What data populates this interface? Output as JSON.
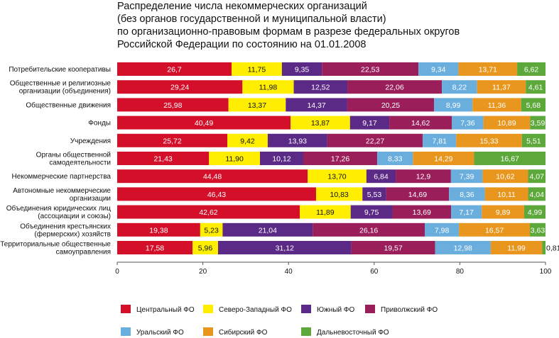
{
  "chart_data": {
    "type": "bar",
    "orientation": "horizontal",
    "stacked": true,
    "title": [
      "Распределение числа некоммерческих организаций",
      "(без органов государственной и муниципальной власти)",
      "по организационно-правовым формам  в разрезе федеральных округов",
      "Российской Федерации по состоянию на 01.01.2008"
    ],
    "categories": [
      [
        "Потребительские кооперативы"
      ],
      [
        "Общественные и религиозные",
        "организации (объединения)"
      ],
      [
        "Общественные движения"
      ],
      [
        "Фонды"
      ],
      [
        "Учреждения"
      ],
      [
        "Органы общественной",
        "самодеятельности"
      ],
      [
        "Некоммерческие партнерства"
      ],
      [
        "Автономные некоммерческие",
        "организации"
      ],
      [
        "Объединения юридических лиц",
        "(ассоциации и союзы)"
      ],
      [
        "Объединения крестьянских",
        "(фермерских) хозяйств"
      ],
      [
        "Территориальные общественные",
        "самоуправления"
      ]
    ],
    "series": [
      {
        "name": "Центральный ФО",
        "color": "#d40f2a",
        "label_color": "#ffffff",
        "values": [
          26.7,
          29.24,
          25.98,
          40.49,
          25.72,
          21.43,
          44.48,
          46.43,
          42.62,
          19.38,
          17.58
        ],
        "labels": [
          "26,7",
          "29,24",
          "25,98",
          "40,49",
          "25,72",
          "21,43",
          "44,48",
          "46,43",
          "42,62",
          "19,38",
          "17,58"
        ]
      },
      {
        "name": "Северо-Западный ФО",
        "color": "#ffee00",
        "label_color": "#111111",
        "values": [
          11.75,
          11.98,
          13.37,
          13.87,
          9.42,
          11.9,
          13.7,
          10.83,
          11.89,
          5.23,
          5.96
        ],
        "labels": [
          "11,75",
          "11,98",
          "13,37",
          "13,87",
          "9,42",
          "11,90",
          "13,70",
          "10,83",
          "11,89",
          "5,23",
          "5,96"
        ]
      },
      {
        "name": "Южный ФО",
        "color": "#5b2a86",
        "label_color": "#ffffff",
        "values": [
          9.35,
          12.52,
          14.37,
          9.17,
          13.93,
          10.12,
          6.84,
          5.53,
          9.75,
          21.04,
          31.12
        ],
        "labels": [
          "9,35",
          "12,52",
          "14,37",
          "9,17",
          "13,93",
          "10,12",
          "6,84",
          "5,53",
          "9,75",
          "21,04",
          "31,12"
        ]
      },
      {
        "name": "Приволжский ФО",
        "color": "#9a1e5a",
        "label_color": "#ffffff",
        "values": [
          22.53,
          22.06,
          20.25,
          14.62,
          22.27,
          17.26,
          12.9,
          14.69,
          13.69,
          26.16,
          19.57
        ],
        "labels": [
          "22,53",
          "22,06",
          "20,25",
          "14,62",
          "22,27",
          "17,26",
          "12,9",
          "14,69",
          "13,69",
          "26,16",
          "19,57"
        ]
      },
      {
        "name": "Уральский ФО",
        "color": "#6aaede",
        "label_color": "#ffffff",
        "values": [
          9.34,
          8.22,
          8.99,
          7.36,
          7.81,
          8.33,
          7.39,
          8.36,
          7.17,
          7.98,
          12.98
        ],
        "labels": [
          "9,34",
          "8,22",
          "8,99",
          "7,36",
          "7,81",
          "8,33",
          "7,39",
          "8,36",
          "7,17",
          "7,98",
          "12,98"
        ]
      },
      {
        "name": "Сибирский ФО",
        "color": "#e9961e",
        "label_color": "#ffffff",
        "values": [
          13.71,
          11.37,
          11.36,
          10.89,
          15.33,
          14.29,
          10.62,
          10.11,
          9.89,
          16.57,
          11.99
        ],
        "labels": [
          "13,71",
          "11,37",
          "11,36",
          "10,89",
          "15,33",
          "14,29",
          "10,62",
          "10,11",
          "9,89",
          "16,57",
          "11,99"
        ]
      },
      {
        "name": "Дальневосточный ФО",
        "color": "#5da83b",
        "label_color": "#ffffff",
        "values": [
          6.62,
          4.61,
          5.68,
          3.59,
          5.51,
          16.67,
          4.07,
          4.04,
          4.99,
          3.63,
          0.81
        ],
        "labels": [
          "6,62",
          "4,61",
          "5,68",
          "3,59",
          "5,51",
          "16,67",
          "4,07",
          "4,04",
          "4,99",
          "3,63",
          "0,81"
        ]
      }
    ],
    "xlim": [
      0,
      100
    ],
    "xticks": [
      0,
      20,
      40,
      60,
      80,
      100
    ],
    "xtick_labels": [
      "0",
      "20",
      "40",
      "60",
      "80",
      "100"
    ],
    "grid": false,
    "legend_position": "bottom"
  }
}
